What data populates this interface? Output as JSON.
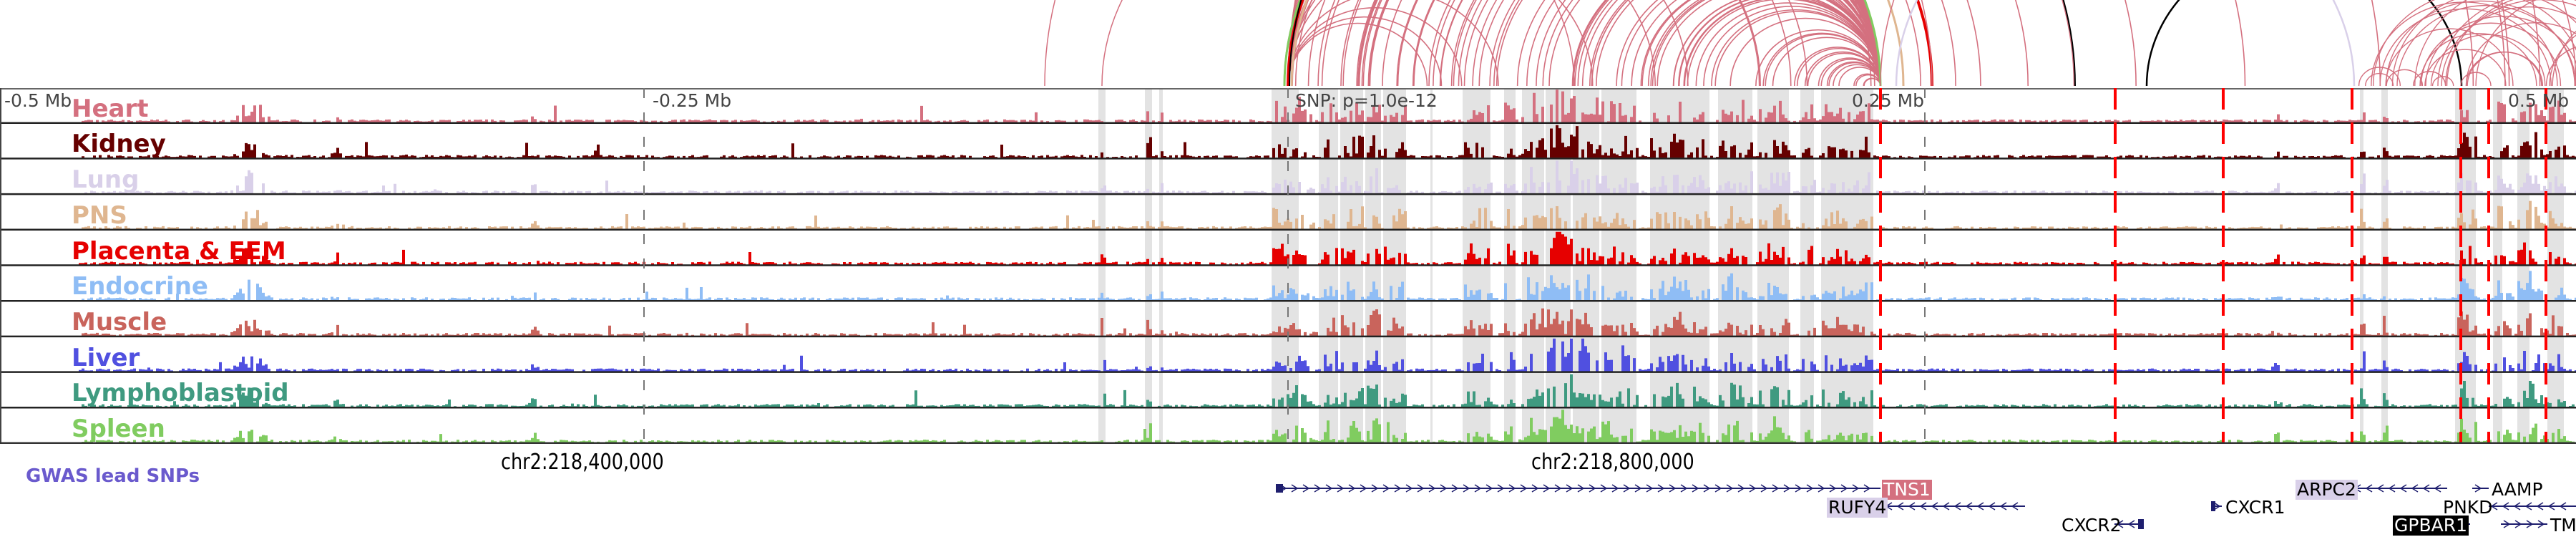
{
  "tracks": [
    {
      "label": "Heart",
      "color": "#d4707f"
    },
    {
      "label": "Kidney",
      "color": "#660000"
    },
    {
      "label": "Lung",
      "color": "#d9d0e9"
    },
    {
      "label": "PNS",
      "color": "#dfb690"
    },
    {
      "label": "Placenta & EEM",
      "color": "#e60000"
    },
    {
      "label": "Endocrine",
      "color": "#8fbdf5"
    },
    {
      "label": "Muscle",
      "color": "#c9645c"
    },
    {
      "label": "Liver",
      "color": "#5050e0"
    },
    {
      "label": "Lymphoblastoid",
      "color": "#3f9a80"
    },
    {
      "label": "Spleen",
      "color": "#80cc60"
    }
  ],
  "scale": {
    "left": "-0.5 Mb",
    "left_mid": "-0.25 Mb",
    "snp": "SNP: p=1.0e-12",
    "right_mid": "0.25 Mb",
    "right": "0.5 Mb"
  },
  "coords": {
    "a": "chr2:218,400,000",
    "b": "chr2:218,800,000"
  },
  "gwas": {
    "label": "GWAS lead SNPs",
    "color": "#6a5acd"
  },
  "genes": [
    {
      "name": "TNS1",
      "highlight": "#d4707f",
      "text_color": "#fff"
    },
    {
      "name": "RUFY4",
      "highlight": "#d9d0e9",
      "text_color": "#000"
    },
    {
      "name": "CXCR2",
      "highlight": "",
      "text_color": "#000"
    },
    {
      "name": "CXCR1",
      "highlight": "",
      "text_color": "#000"
    },
    {
      "name": "ARPC2",
      "highlight": "#d9d0e9",
      "text_color": "#000"
    },
    {
      "name": "AAMP",
      "highlight": "",
      "text_color": "#000"
    },
    {
      "name": "PNKD",
      "highlight": "",
      "text_color": "#000"
    },
    {
      "name": "GPBAR1",
      "highlight": "#000000",
      "text_color": "#fff"
    },
    {
      "name": "TMI",
      "highlight": "",
      "text_color": "#000"
    }
  ]
}
